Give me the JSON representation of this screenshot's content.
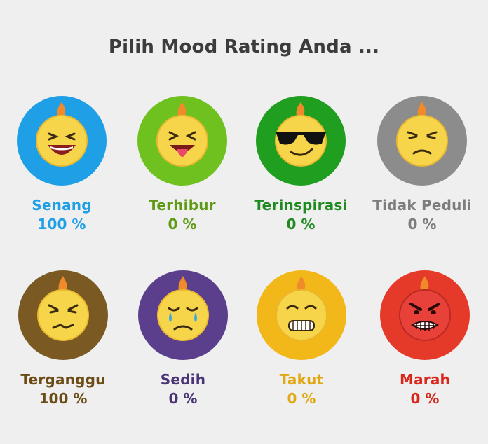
{
  "title": "Pilih Mood Rating Anda ...",
  "moods": [
    {
      "label": "Senang",
      "percent": "100 %",
      "color": "#1e9fe6",
      "text_color": "#1e9fe6",
      "face_icon": "laughing-face-icon"
    },
    {
      "label": "Terhibur",
      "percent": "0 %",
      "color": "#6ec11e",
      "text_color": "#5f9a14",
      "face_icon": "tongue-out-face-icon"
    },
    {
      "label": "Terinspirasi",
      "percent": "0 %",
      "color": "#1f9e1f",
      "text_color": "#1f8a1f",
      "face_icon": "sunglasses-face-icon"
    },
    {
      "label": "Tidak Peduli",
      "percent": "0 %",
      "color": "#8c8c8c",
      "text_color": "#7d7d7d",
      "face_icon": "indifferent-face-icon"
    },
    {
      "label": "Terganggu",
      "percent": "100 %",
      "color": "#7a5a22",
      "text_color": "#6b4c16",
      "face_icon": "annoyed-face-icon"
    },
    {
      "label": "Sedih",
      "percent": "0 %",
      "color": "#5b3f8c",
      "text_color": "#4a3475",
      "face_icon": "crying-face-icon"
    },
    {
      "label": "Takut",
      "percent": "0 %",
      "color": "#f2b81a",
      "text_color": "#e2a813",
      "face_icon": "scared-face-icon"
    },
    {
      "label": "Marah",
      "percent": "0 %",
      "color": "#e53a2a",
      "text_color": "#d8281c",
      "face_icon": "angry-face-icon"
    }
  ]
}
